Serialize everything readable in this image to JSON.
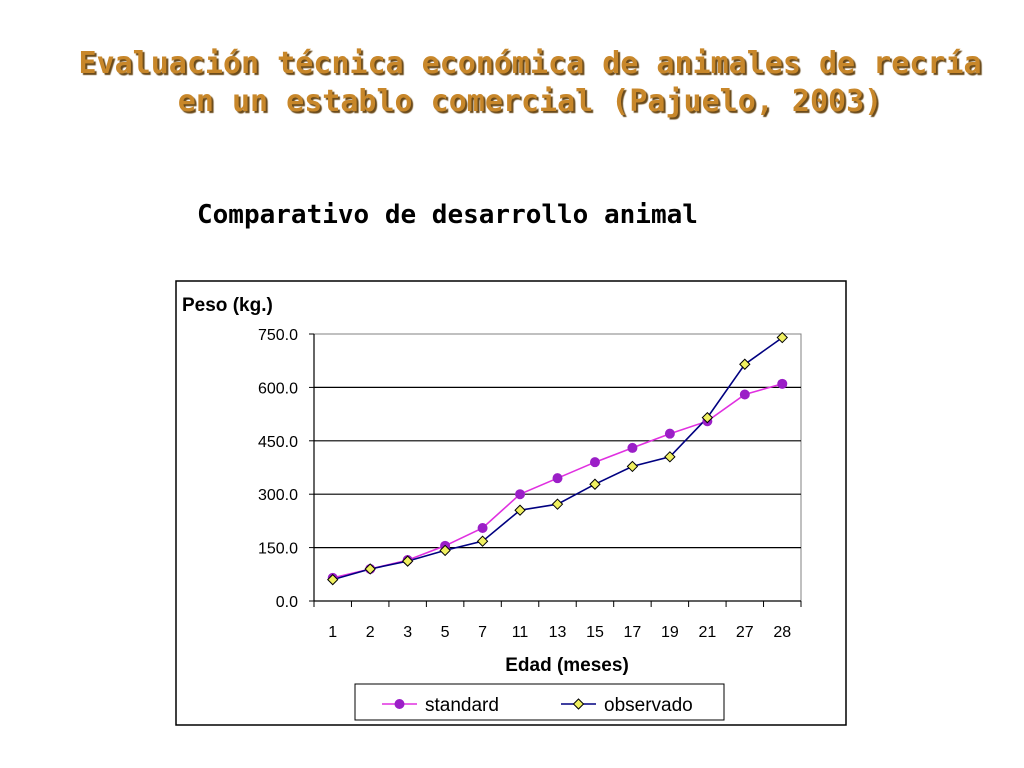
{
  "slide": {
    "title_line1": "Evaluación técnica económica de animales de recría",
    "title_line2": "en un establo comercial (Pajuelo, 2003)",
    "subtitle": "Comparativo de desarrollo animal"
  },
  "chart_data": {
    "type": "line",
    "title": "",
    "ylabel": "Peso (kg.)",
    "xlabel": "Edad (meses)",
    "categories": [
      "1",
      "2",
      "3",
      "5",
      "7",
      "11",
      "13",
      "15",
      "17",
      "19",
      "21",
      "27",
      "28"
    ],
    "ylim": [
      0,
      750
    ],
    "yticks": [
      "0.0",
      "150.0",
      "300.0",
      "450.0",
      "600.0",
      "750.0"
    ],
    "grid": true,
    "legend_position": "bottom",
    "series": [
      {
        "name": "standard",
        "color": "#e030e0",
        "marker": "circle",
        "marker_color": "#9b1fc7",
        "values": [
          65,
          90,
          115,
          155,
          205,
          300,
          345,
          390,
          430,
          470,
          505,
          580,
          610
        ]
      },
      {
        "name": "observado",
        "color": "#000080",
        "marker": "diamond",
        "marker_color": "#f0f060",
        "values": [
          60,
          90,
          112,
          142,
          168,
          255,
          272,
          328,
          378,
          405,
          515,
          665,
          740
        ]
      }
    ]
  }
}
